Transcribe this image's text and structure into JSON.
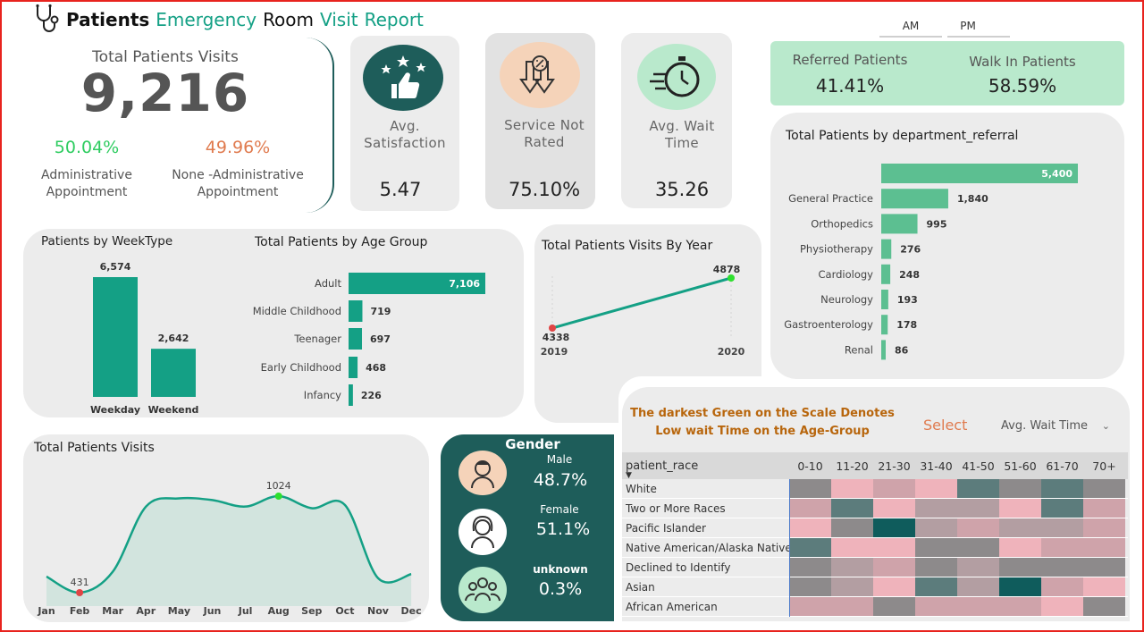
{
  "header": {
    "title_bold": "Patients",
    "title_word2": "Emergency",
    "title_word3": "Room",
    "title_word4": "Visit",
    "title_word5": "Report",
    "icon": "stethoscope-icon"
  },
  "filters": {
    "am": "AM",
    "pm": "PM"
  },
  "total_visits": {
    "label": "Total Patients Visits",
    "value": "9,216",
    "admin_pct": "50.04%",
    "admin_label_1": "Administrative",
    "admin_label_2": "Appointment",
    "nonadmin_pct": "49.96%",
    "nonadmin_label_1": "None -Administrative",
    "nonadmin_label_2": "Appointment"
  },
  "kpis": [
    {
      "label_1": "Avg.",
      "label_2": "Satisfaction",
      "value": "5.47",
      "icon": "thumbs-up-stars-icon"
    },
    {
      "label_1": "Service Not",
      "label_2": "Rated",
      "value": "75.10%",
      "icon": "not-rated-arrows-icon"
    },
    {
      "label_1": "Avg. Wait",
      "label_2": "Time",
      "value": "35.26",
      "icon": "stopwatch-icon"
    }
  ],
  "referral": {
    "referred_label": "Referred Patients",
    "referred_value": "41.41%",
    "walkin_label": "Walk In Patients",
    "walkin_value": "58.59%"
  },
  "gender": {
    "title": "Gender",
    "items": [
      {
        "label": "Male",
        "value": "48.7%",
        "icon": "male-user-icon"
      },
      {
        "label": "Female",
        "value": "51.1%",
        "icon": "female-user-icon"
      },
      {
        "label": "unknown",
        "value": "0.3%",
        "icon": "group-icon"
      }
    ]
  },
  "heatmap_panel": {
    "note_line1": "The darkest Green on the Scale Denotes",
    "note_line2": "Low wait Time on the Age-Group",
    "select_label": "Select",
    "dropdown_value": "Avg. Wait Time",
    "row_header": "patient_race"
  },
  "colors": {
    "accent": "#14a085",
    "dark_teal": "#1e5d5a",
    "referral_bg": "#b9e9cc",
    "orange": "#e07b4f",
    "green": "#2ecc60",
    "note_brown": "#b8660d"
  },
  "chart_data": [
    {
      "type": "bar",
      "title": "Patients by WeekType",
      "categories": [
        "Weekday",
        "Weekend"
      ],
      "values": [
        6574,
        2642
      ],
      "labels": [
        "6,574",
        "2,642"
      ]
    },
    {
      "type": "bar",
      "orientation": "horizontal",
      "title": "Total Patients by Age Group",
      "categories": [
        "Adult",
        "Middle Childhood",
        "Teenager",
        "Early Childhood",
        "Infancy"
      ],
      "values": [
        7106,
        719,
        697,
        468,
        226
      ],
      "labels": [
        "7,106",
        "719",
        "697",
        "468",
        "226"
      ]
    },
    {
      "type": "line",
      "title": "Total Patients Visits By Year",
      "x": [
        "2019",
        "2020"
      ],
      "values": [
        4338,
        4878
      ]
    },
    {
      "type": "bar",
      "orientation": "horizontal",
      "title": "Total Patients by department_referral",
      "categories": [
        "",
        "General Practice",
        "Orthopedics",
        "Physiotherapy",
        "Cardiology",
        "Neurology",
        "Gastroenterology",
        "Renal"
      ],
      "values": [
        5400,
        1840,
        995,
        276,
        248,
        193,
        178,
        86
      ],
      "labels": [
        "5,400",
        "1,840",
        "995",
        "276",
        "248",
        "193",
        "178",
        "86"
      ]
    },
    {
      "type": "area",
      "title": "Total Patients Visits",
      "x": [
        "Jan",
        "Feb",
        "Mar",
        "Apr",
        "May",
        "Jun",
        "Jul",
        "Aug",
        "Sep",
        "Oct",
        "Nov",
        "Dec"
      ],
      "values": [
        530,
        431,
        560,
        960,
        1010,
        1000,
        960,
        1024,
        950,
        970,
        520,
        545
      ],
      "highlight_min": {
        "x": "Feb",
        "label": "431"
      },
      "highlight_max": {
        "x": "Aug",
        "label": "1024"
      }
    },
    {
      "type": "heatmap",
      "title": "",
      "columns": [
        "0-10",
        "11-20",
        "21-30",
        "31-40",
        "41-50",
        "51-60",
        "61-70",
        "70+"
      ],
      "rows": [
        "White",
        "Two or More Races",
        "Pacific Islander",
        "Native American/Alaska Native",
        "Declined to Identify",
        "Asian",
        "African American"
      ],
      "levels": [
        [
          4,
          1,
          2,
          1,
          5,
          4,
          5,
          4
        ],
        [
          2,
          5,
          1,
          3,
          3,
          1,
          5,
          2
        ],
        [
          1,
          4,
          6,
          3,
          2,
          3,
          3,
          2
        ],
        [
          5,
          1,
          1,
          4,
          4,
          1,
          2,
          2
        ],
        [
          4,
          3,
          2,
          4,
          3,
          4,
          4,
          4
        ],
        [
          4,
          3,
          1,
          5,
          3,
          6,
          2,
          1
        ],
        [
          2,
          2,
          4,
          2,
          2,
          2,
          1,
          4
        ]
      ]
    }
  ]
}
